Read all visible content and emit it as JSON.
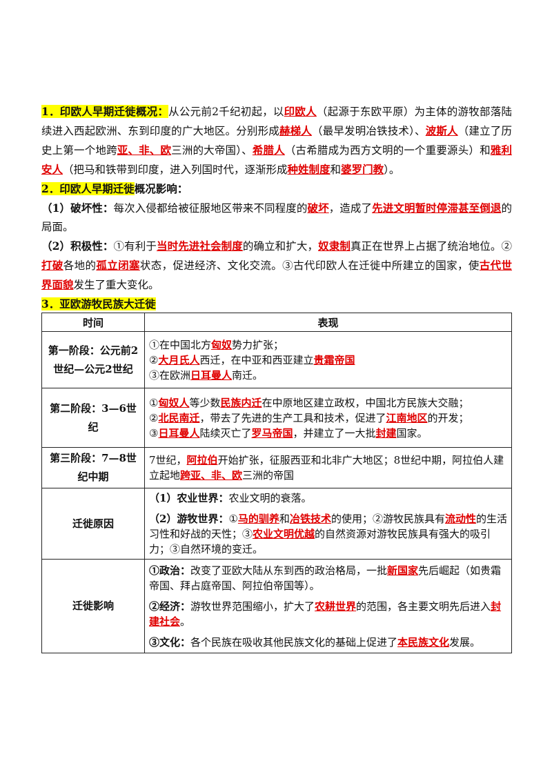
{
  "intro": {
    "h1": "1．印欧人早期迁徙概况：",
    "p1_a": "从公元前2千纪初起，以",
    "p1_k1": "印欧人",
    "p1_b": "（起源于东欧平原）为主体的游牧部落陆续进入西起欧洲、东到印度的广大地区。分别形成",
    "p1_k2": "赫梯人",
    "p1_c": "（最早发明冶铁技术）、",
    "p1_k3": "波斯人",
    "p1_d": "（建立了历史上第一个地跨",
    "p1_k4": "亚、非、欧",
    "p1_e": "三洲的大帝国）、",
    "p1_k5": "希腊人",
    "p1_f": "（古希腊成为西方文明的一个重要源头）和",
    "p1_k6": "雅利安人",
    "p1_g": "（把马和铁带到印度，进入列国时代，逐渐形成",
    "p1_k7": "种姓制度",
    "p1_h": "和",
    "p1_k8": "婆罗门教",
    "p1_i": "）。"
  },
  "impact": {
    "h2_hl": "2．印欧人早期迁徙",
    "h2_rest": "概况影响：",
    "p2_label": "（1）破坏性：",
    "p2_a": "每次入侵都给被征服地区带来不同程度的",
    "p2_k1": "破坏",
    "p2_b": "，造成了",
    "p2_k2": "先进文明暂时停滞甚至倒退",
    "p2_c": "的局面。",
    "p3_label": "（2）积极性：",
    "p3_a": "①有利于",
    "p3_k1": "当时先进社会制度",
    "p3_b": "的确立和扩大，",
    "p3_k2": "奴隶制",
    "p3_c": "真正在世界上占据了统治地位。②",
    "p3_k3": "打破",
    "p3_d": "各地的",
    "p3_k4": "孤立闭塞",
    "p3_e": "状态，促进经济、文化交流。③古代印欧人在迁徙中所建立的国家，使",
    "p3_k5": "古代世界面貌",
    "p3_f": "发生了重大变化。"
  },
  "section3": {
    "title": "3．亚欧游牧民族大迁徙",
    "col_time": "时间",
    "col_desc": "表现",
    "r1_left": "第一阶段：公元前2世纪—公元2世纪",
    "r1_l1_a": "①在中国北方",
    "r1_l1_k": "匈奴",
    "r1_l1_b": "势力扩张；",
    "r1_l2_a": "②",
    "r1_l2_k1": "大月氏人",
    "r1_l2_b": "西迁，在中亚和西亚建立",
    "r1_l2_k2": "贵霜帝国",
    "r1_l3_a": "③在欧洲",
    "r1_l3_k": "日耳曼人",
    "r1_l3_b": "南迁。",
    "r2_left": "第二阶段：3—6世纪",
    "r2_l1_a": "①",
    "r2_l1_k1": "匈奴人",
    "r2_l1_b": "等少数",
    "r2_l1_k2": "民族内迁",
    "r2_l1_c": "在中原地区建立政权，中国北方民族大交融；",
    "r2_l2_a": "②",
    "r2_l2_k1": "北民南迁",
    "r2_l2_b": "，带去了先进的生产工具和技术，促进了",
    "r2_l2_k2": "江南地区",
    "r2_l2_c": "的开发；",
    "r2_l3_a": "③",
    "r2_l3_k1": "日耳曼人",
    "r2_l3_b": "陆续灭亡了",
    "r2_l3_k2": "罗马帝国",
    "r2_l3_c": "，并建立了一大批",
    "r2_l3_k3": "封建",
    "r2_l3_d": "国家。",
    "r3_left": "第三阶段：7—8世纪中期",
    "r3_a": "7世纪，",
    "r3_k1": "阿拉伯",
    "r3_b": "开始扩张，征服西亚和北非广大地区；8世纪中期，阿拉伯人建立起地",
    "r3_k2": "跨亚、非、欧",
    "r3_c": "三洲的帝国",
    "r4_left": "迁徙原因",
    "r4_p1_label": "（1）农业世界：",
    "r4_p1_a": "农业文明的衰落。",
    "r4_p2_label": "（2）游牧世界：",
    "r4_p2_a": "①",
    "r4_p2_k1": "马的驯养",
    "r4_p2_b": "和",
    "r4_p2_k2": "冶铁技术",
    "r4_p2_c": "的使用；②游牧民族具有",
    "r4_p2_k3": "流动性",
    "r4_p2_d": "的生活习性和好战的天性；③",
    "r4_p2_k4": "农业文明优越",
    "r4_p2_e": "的自然资源对游牧民族具有强大的吸引力；③自然环境的变迁。",
    "r5_left": "迁徙影响",
    "r5_p1_label": "①政治：",
    "r5_p1_a": "改变了亚欧大陆从东到西的政治格局，一批",
    "r5_p1_k": "新国家",
    "r5_p1_b": "先后崛起（如贵霜帝国、拜占庭帝国、阿拉伯帝国等）。",
    "r5_p2_label": "②经济：",
    "r5_p2_a": "游牧世界范围缩小，扩大了",
    "r5_p2_k1": "农耕世界",
    "r5_p2_b": "的范围，各主要文明先后进入",
    "r5_p2_k2": "封建社会",
    "r5_p2_c": "。",
    "r5_p3_label": "③文化：",
    "r5_p3_a": "各个民族在吸收其他民族文化的基础上促进了",
    "r5_p3_k": "本民族文化",
    "r5_p3_b": "发展。"
  },
  "colors": {
    "highlight": "#ffff00",
    "keyword": "#e00000"
  }
}
